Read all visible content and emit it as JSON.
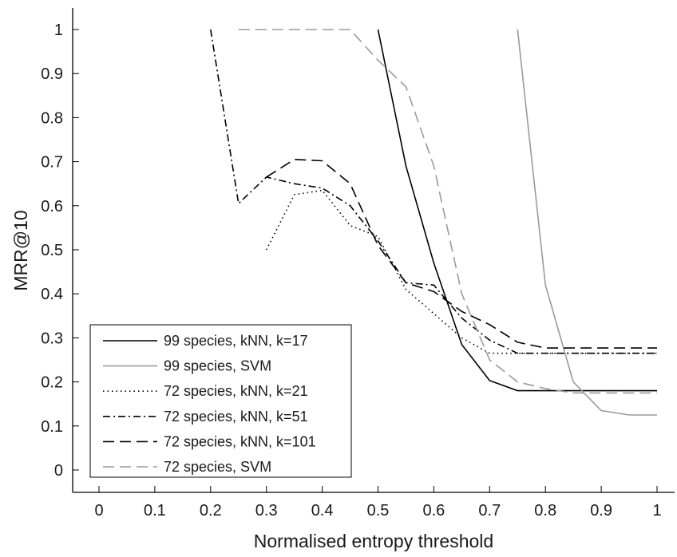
{
  "chart_data": {
    "type": "line",
    "title": "",
    "xlabel": "Normalised entropy threshold",
    "ylabel": "MRR@10",
    "xlim": [
      -0.05,
      1.03
    ],
    "ylim": [
      -0.05,
      1.05
    ],
    "xticks": [
      0,
      0.1,
      0.2,
      0.3,
      0.4,
      0.5,
      0.6,
      0.7,
      0.8,
      0.9,
      1
    ],
    "xtick_labels": [
      "0",
      "0.1",
      "0.2",
      "0.3",
      "0.4",
      "0.5",
      "0.6",
      "0.7",
      "0.8",
      "0.9",
      "1"
    ],
    "yticks": [
      0,
      0.1,
      0.2,
      0.3,
      0.4,
      0.5,
      0.6,
      0.7,
      0.8,
      0.9,
      1
    ],
    "ytick_labels": [
      "0",
      "0.1",
      "0.2",
      "0.3",
      "0.4",
      "0.5",
      "0.6",
      "0.7",
      "0.8",
      "0.9",
      "1"
    ],
    "grid": false,
    "legend_position": "bottom-left",
    "series": [
      {
        "name": "99 species, kNN, k=17",
        "color": "#000000",
        "style": "solid",
        "x": [
          0.5,
          0.55,
          0.6,
          0.65,
          0.7,
          0.75,
          0.8,
          0.85,
          0.9,
          0.95,
          1.0
        ],
        "y": [
          1.0,
          0.69,
          0.47,
          0.285,
          0.203,
          0.18,
          0.18,
          0.18,
          0.18,
          0.18,
          0.18
        ]
      },
      {
        "name": "99 species, SVM",
        "color": "#9a9a9a",
        "style": "solid",
        "x": [
          0.75,
          0.8,
          0.85,
          0.9,
          0.95,
          1.0
        ],
        "y": [
          1.0,
          0.42,
          0.2,
          0.135,
          0.125,
          0.125
        ]
      },
      {
        "name": "72 species, kNN, k=21",
        "color": "#000000",
        "style": "dotted",
        "x": [
          0.3,
          0.35,
          0.4,
          0.45,
          0.5,
          0.55,
          0.6,
          0.65,
          0.7,
          0.75,
          0.8,
          0.85,
          0.9,
          0.95,
          1.0
        ],
        "y": [
          0.5,
          0.625,
          0.635,
          0.555,
          0.53,
          0.41,
          0.355,
          0.3,
          0.265,
          0.265,
          0.265,
          0.265,
          0.265,
          0.265,
          0.265
        ]
      },
      {
        "name": "72 species, kNN, k=51",
        "color": "#000000",
        "style": "dashdot",
        "x": [
          0.2,
          0.25,
          0.3,
          0.35,
          0.4,
          0.45,
          0.5,
          0.55,
          0.6,
          0.65,
          0.7,
          0.75,
          0.8,
          0.85,
          0.9,
          0.95,
          1.0
        ],
        "y": [
          1.0,
          0.605,
          0.665,
          0.65,
          0.64,
          0.6,
          0.52,
          0.425,
          0.42,
          0.345,
          0.295,
          0.265,
          0.265,
          0.265,
          0.265,
          0.265,
          0.265
        ]
      },
      {
        "name": "72 species, kNN, k=101",
        "color": "#000000",
        "style": "dashed",
        "x": [
          0.3,
          0.35,
          0.4,
          0.45,
          0.5,
          0.55,
          0.6,
          0.65,
          0.7,
          0.75,
          0.8,
          0.85,
          0.9,
          0.95,
          1.0
        ],
        "y": [
          0.665,
          0.705,
          0.702,
          0.65,
          0.51,
          0.425,
          0.405,
          0.36,
          0.33,
          0.29,
          0.277,
          0.277,
          0.277,
          0.277,
          0.277
        ]
      },
      {
        "name": "72 species, SVM",
        "color": "#9a9a9a",
        "style": "dashed",
        "x": [
          0.25,
          0.3,
          0.35,
          0.4,
          0.45,
          0.5,
          0.55,
          0.6,
          0.65,
          0.7,
          0.75,
          0.8,
          0.85,
          0.9,
          0.95,
          1.0
        ],
        "y": [
          1.0,
          1.0,
          1.0,
          1.0,
          1.0,
          0.93,
          0.87,
          0.69,
          0.4,
          0.25,
          0.2,
          0.185,
          0.175,
          0.175,
          0.175,
          0.175
        ]
      }
    ]
  }
}
